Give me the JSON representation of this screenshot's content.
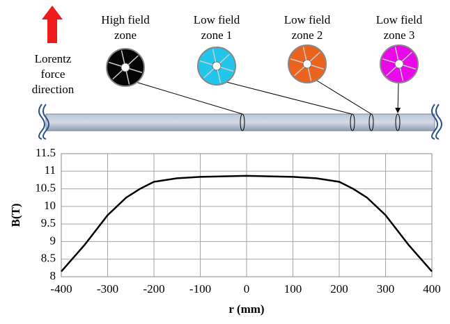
{
  "diagram": {
    "lorentz": [
      "Lorentz",
      "force",
      "direction"
    ],
    "zones": [
      [
        "High field",
        "zone"
      ],
      [
        "Low field",
        "zone 1"
      ],
      [
        "Low field",
        "zone 2"
      ],
      [
        "Low field",
        "zone 3"
      ]
    ]
  },
  "chart_data": {
    "type": "line",
    "ylabel": "B(T)",
    "xlabel": "r (mm)",
    "x": [
      -400,
      -350,
      -300,
      -260,
      -230,
      -200,
      -150,
      -100,
      0,
      100,
      150,
      200,
      230,
      260,
      300,
      350,
      400
    ],
    "values": [
      8.15,
      8.9,
      9.75,
      10.25,
      10.5,
      10.7,
      10.8,
      10.84,
      10.87,
      10.84,
      10.8,
      10.7,
      10.5,
      10.25,
      9.75,
      8.9,
      8.15
    ],
    "color": "#000000",
    "xlim": [
      -400,
      400
    ],
    "xticks": [
      -400,
      -300,
      -200,
      -100,
      0,
      100,
      200,
      300,
      400
    ],
    "ylim": [
      8,
      11.5
    ],
    "yticks": [
      8,
      8.5,
      9,
      9.5,
      10,
      10.5,
      11,
      11.5
    ],
    "grid": true
  }
}
